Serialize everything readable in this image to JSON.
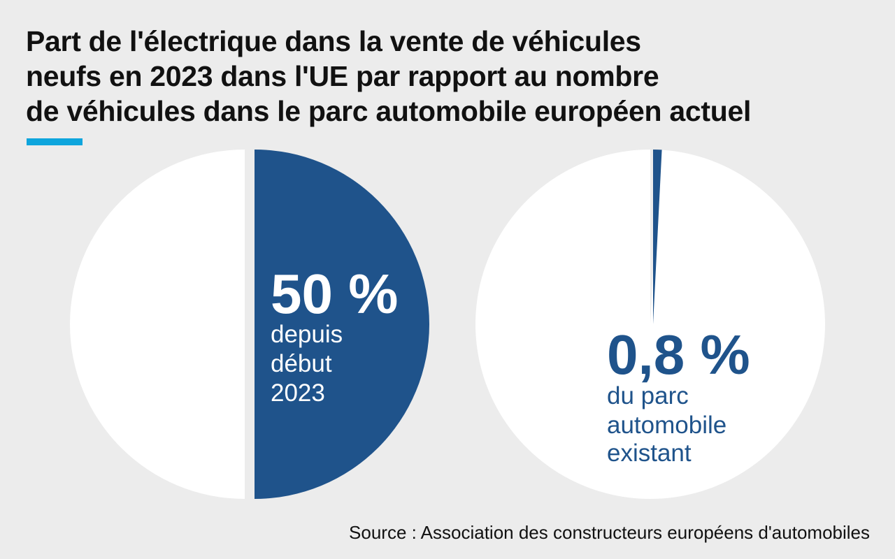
{
  "title_lines": [
    "Part de l'électrique dans la vente de véhicules",
    "neufs en 2023 dans l'UE par rapport au nombre",
    "de véhicules dans le parc automobile européen actuel"
  ],
  "source": "Source : Association des constructeurs européens d'automobiles",
  "colors": {
    "accent": "#0ea5dd",
    "highlight": "#1f538b",
    "rest": "#ffffff",
    "background": "#ececec"
  },
  "chart_data": [
    {
      "type": "pie",
      "values": [
        50,
        50
      ],
      "highlight_index": 0,
      "label_value": "50 %",
      "label_lines": [
        "depuis",
        "début",
        "2023"
      ]
    },
    {
      "type": "pie",
      "values": [
        0.8,
        99.2
      ],
      "highlight_index": 0,
      "label_value": "0,8 %",
      "label_lines": [
        "du parc",
        "automobile",
        "existant"
      ]
    }
  ]
}
